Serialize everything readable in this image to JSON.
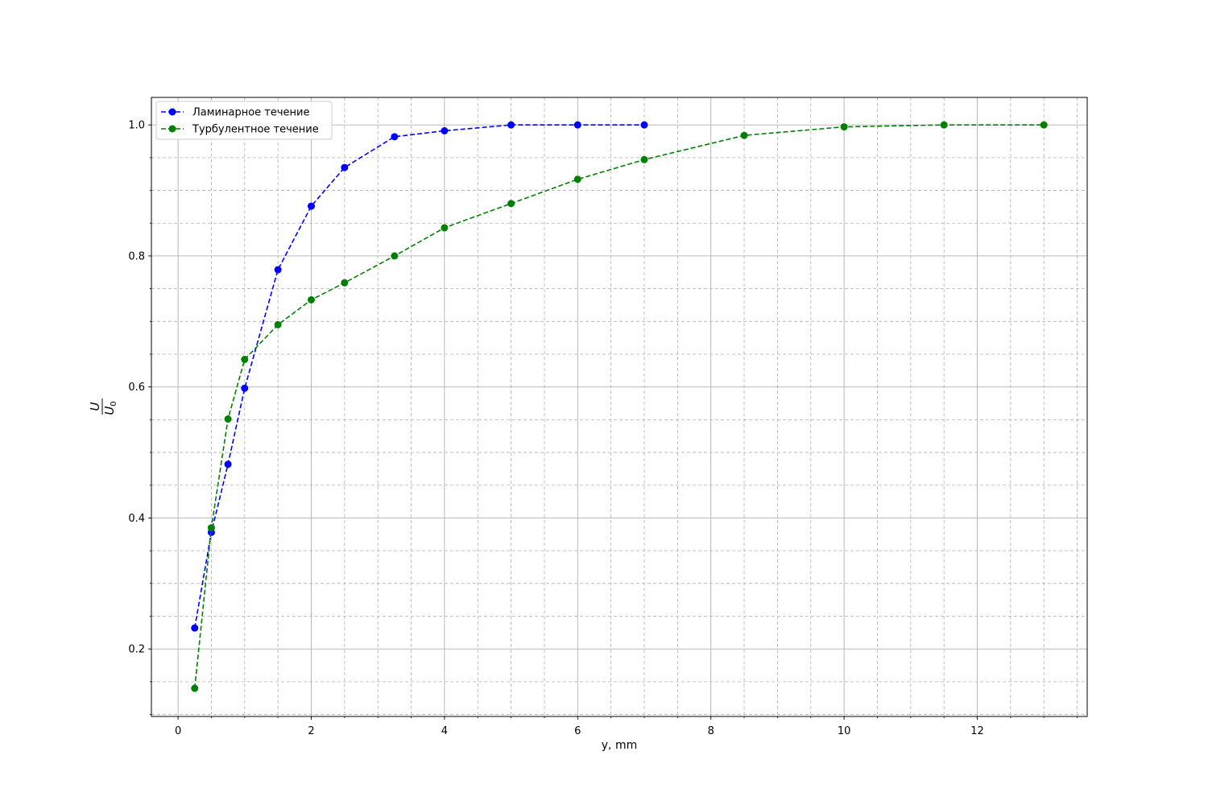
{
  "chart_data": {
    "type": "line",
    "title": "",
    "xlabel": "y, mm",
    "ylabel_num": "U",
    "ylabel_den": "U",
    "ylabel_den_sub": "0",
    "xlim": [
      -0.4,
      13.65
    ],
    "ylim": [
      0.097,
      1.042
    ],
    "x_ticks": [
      0,
      2,
      4,
      6,
      8,
      10,
      12
    ],
    "x_tick_labels": [
      "0",
      "2",
      "4",
      "6",
      "8",
      "10",
      "12"
    ],
    "y_ticks": [
      0.2,
      0.4,
      0.6,
      0.8,
      1.0
    ],
    "y_tick_labels": [
      "0.2",
      "0.4",
      "0.6",
      "0.8",
      "1.0"
    ],
    "x_minor_step": 0.5,
    "y_minor_step": 0.05,
    "grid": true,
    "legend_position": "top-left",
    "series": [
      {
        "name": "Ламинарное течение",
        "color": "#0000ff",
        "x": [
          0.25,
          0.5,
          0.75,
          1.0,
          1.5,
          2.0,
          2.5,
          3.25,
          4.0,
          5.0,
          6.0,
          7.0
        ],
        "y": [
          0.232,
          0.378,
          0.482,
          0.598,
          0.779,
          0.876,
          0.935,
          0.982,
          0.991,
          1.0,
          1.0,
          1.0
        ]
      },
      {
        "name": "Турбулентное течение",
        "color": "#008000",
        "x": [
          0.25,
          0.5,
          0.75,
          1.0,
          1.5,
          2.0,
          2.5,
          3.25,
          4.0,
          5.0,
          6.0,
          7.0,
          8.5,
          10.0,
          11.5,
          13.0
        ],
        "y": [
          0.14,
          0.385,
          0.551,
          0.642,
          0.695,
          0.733,
          0.759,
          0.8,
          0.843,
          0.88,
          0.917,
          0.947,
          0.984,
          0.997,
          1.0,
          1.0
        ]
      }
    ]
  }
}
